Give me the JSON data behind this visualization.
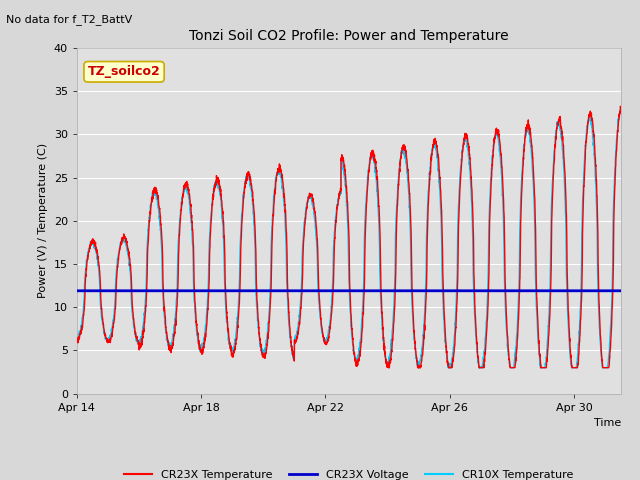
{
  "title": "Tonzi Soil CO2 Profile: Power and Temperature",
  "no_data_text": "No data for f_T2_BattV",
  "ylabel": "Power (V) / Temperature (C)",
  "xlabel": "Time",
  "ylim": [
    0,
    40
  ],
  "yticks": [
    0,
    5,
    10,
    15,
    20,
    25,
    30,
    35,
    40
  ],
  "xtick_labels": [
    "Apr 14",
    "Apr 18",
    "Apr 22",
    "Apr 26",
    "Apr 30"
  ],
  "xtick_positions": [
    0,
    4,
    8,
    12,
    16
  ],
  "legend_box_label": "TZ_soilco2",
  "legend_entries": [
    "CR23X Temperature",
    "CR23X Voltage",
    "CR10X Temperature"
  ],
  "cr23x_voltage_value": 11.9,
  "total_days": 17.5,
  "fig_bg_color": "#d8d8d8",
  "plot_bg_color": "#e0e0e0",
  "grid_color": "#ffffff",
  "cr23x_color": "#ff0000",
  "voltage_color": "#0000cc",
  "cr10x_color": "#00ccff"
}
